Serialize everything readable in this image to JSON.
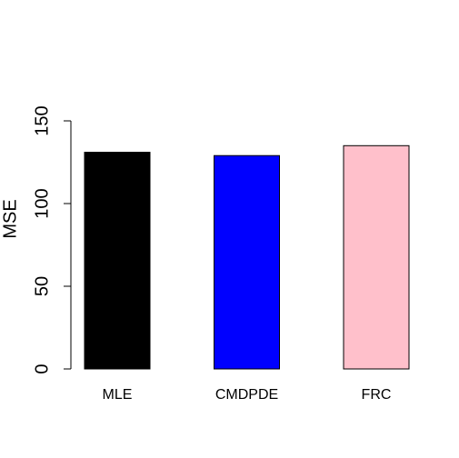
{
  "chart_data": {
    "type": "bar",
    "y_label": "MSE",
    "categories": [
      "MLE",
      "CMDPDE",
      "FRC"
    ],
    "values": [
      131,
      129,
      135
    ],
    "colors": [
      "#000000",
      "#0000ff",
      "#ffc0cb"
    ],
    "ylim": [
      0,
      150
    ],
    "yticks": [
      0,
      50,
      100,
      150
    ]
  }
}
